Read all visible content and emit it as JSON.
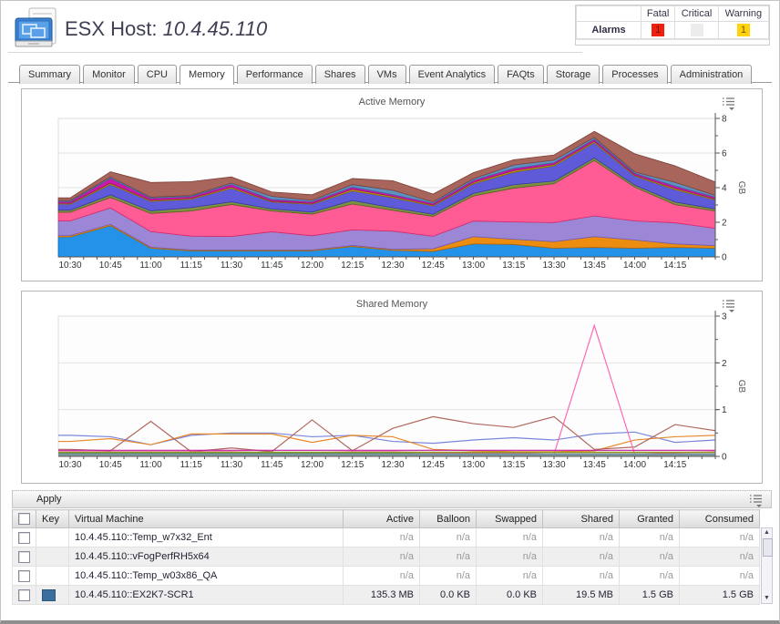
{
  "header": {
    "title_prefix": "ESX Host:",
    "host_ip": "10.4.45.110"
  },
  "alarms": {
    "row_label": "Alarms",
    "columns": [
      "Fatal",
      "Critical",
      "Warning"
    ],
    "fatal_count": "1",
    "critical_count": "",
    "warning_count": "1",
    "fatal_color": "#f02010",
    "critical_color": "#ececec",
    "warning_color": "#ffd20a"
  },
  "tabs": {
    "items": [
      {
        "label": "Summary",
        "active": false
      },
      {
        "label": "Monitor",
        "active": false
      },
      {
        "label": "CPU",
        "active": false
      },
      {
        "label": "Memory",
        "active": true
      },
      {
        "label": "Performance",
        "active": false
      },
      {
        "label": "Shares",
        "active": false
      },
      {
        "label": "VMs",
        "active": false
      },
      {
        "label": "Event Analytics",
        "active": false
      },
      {
        "label": "FAQts",
        "active": false
      },
      {
        "label": "Storage",
        "active": false
      },
      {
        "label": "Processes",
        "active": false
      },
      {
        "label": "Administration",
        "active": false
      }
    ]
  },
  "chart_data": [
    {
      "type": "area",
      "stacked": true,
      "title": "Active Memory",
      "ylabel": "GB",
      "ylim": [
        0,
        8
      ],
      "yticks": [
        0,
        2,
        4,
        6,
        8
      ],
      "y_minor_step": 1,
      "grid": true,
      "legend": "none",
      "x_labels": [
        "10:30",
        "10:45",
        "11:00",
        "11:15",
        "11:30",
        "11:45",
        "12:00",
        "12:15",
        "12:30",
        "12:45",
        "13:00",
        "13:15",
        "13:30",
        "13:45",
        "14:00",
        "14:15"
      ],
      "x_note_unit": "time of day, 15-min ticks",
      "series": [
        {
          "name": "layer-blue",
          "color": "#2492e8",
          "stroke": "#0d6dc0",
          "values": [
            1.15,
            1.8,
            0.5,
            0.35,
            0.35,
            0.35,
            0.35,
            0.6,
            0.38,
            0.32,
            0.75,
            0.72,
            0.5,
            0.55,
            0.5,
            0.55,
            0.5
          ]
        },
        {
          "name": "layer-orange",
          "color": "#ec8d12",
          "stroke": "#b56400",
          "values": [
            0.08,
            0.08,
            0.06,
            0.05,
            0.05,
            0.05,
            0.05,
            0.06,
            0.06,
            0.15,
            0.42,
            0.3,
            0.38,
            0.62,
            0.48,
            0.2,
            0.15
          ]
        },
        {
          "name": "layer-lavender",
          "color": "#9b87d6",
          "stroke": "#6f5ab8",
          "values": [
            0.85,
            0.95,
            0.9,
            0.8,
            0.78,
            1.05,
            0.82,
            0.9,
            1.05,
            0.72,
            0.9,
            1.0,
            1.1,
            1.2,
            1.1,
            1.22,
            1.0
          ]
        },
        {
          "name": "layer-pink",
          "color": "#ff5c96",
          "stroke": "#d82a68",
          "values": [
            0.5,
            0.6,
            1.05,
            1.45,
            1.85,
            1.2,
            1.25,
            1.5,
            1.2,
            1.15,
            1.45,
            1.95,
            2.25,
            3.2,
            1.95,
            1.05,
            1.0
          ]
        },
        {
          "name": "layer-olive",
          "color": "#7d9140",
          "stroke": "#55661f",
          "values": [
            0.12,
            0.15,
            0.15,
            0.2,
            0.15,
            0.12,
            0.12,
            0.2,
            0.15,
            0.12,
            0.15,
            0.2,
            0.15,
            0.15,
            0.12,
            0.15,
            0.12
          ]
        },
        {
          "name": "layer-indigo",
          "color": "#5f5bd8",
          "stroke": "#3c38ae",
          "values": [
            0.35,
            0.6,
            0.55,
            0.48,
            0.78,
            0.4,
            0.45,
            0.55,
            0.58,
            0.48,
            0.55,
            0.72,
            0.88,
            0.88,
            0.52,
            0.72,
            0.52
          ]
        },
        {
          "name": "layer-gold",
          "color": "#b89b12",
          "stroke": "#8a7300",
          "values": [
            0.05,
            0.08,
            0.06,
            0.06,
            0.08,
            0.05,
            0.05,
            0.1,
            0.08,
            0.06,
            0.08,
            0.1,
            0.08,
            0.08,
            0.06,
            0.08,
            0.06
          ]
        },
        {
          "name": "layer-magenta",
          "color": "#cc18aa",
          "stroke": "#990c7e",
          "values": [
            0.1,
            0.28,
            0.12,
            0.1,
            0.15,
            0.1,
            0.1,
            0.12,
            0.1,
            0.1,
            0.12,
            0.12,
            0.1,
            0.12,
            0.1,
            0.12,
            0.1
          ]
        },
        {
          "name": "layer-steelblue",
          "color": "#5e90c2",
          "stroke": "#3a6a99",
          "values": [
            0.06,
            0.08,
            0.06,
            0.06,
            0.08,
            0.18,
            0.08,
            0.15,
            0.25,
            0.08,
            0.1,
            0.2,
            0.15,
            0.1,
            0.08,
            0.22,
            0.1
          ]
        },
        {
          "name": "layer-brown",
          "color": "#a8655c",
          "stroke": "#7e4038",
          "values": [
            0.15,
            0.3,
            0.85,
            0.8,
            0.35,
            0.25,
            0.32,
            0.35,
            0.55,
            0.45,
            0.35,
            0.3,
            0.3,
            0.35,
            1.05,
            0.95,
            0.78
          ]
        }
      ]
    },
    {
      "type": "line",
      "stacked": false,
      "title": "Shared Memory",
      "ylabel": "GB",
      "ylim": [
        0,
        3
      ],
      "yticks": [
        0,
        1,
        2,
        3
      ],
      "y_minor_step": 0.5,
      "grid": true,
      "legend": "none",
      "x_labels": [
        "10:30",
        "10:45",
        "11:00",
        "11:15",
        "11:30",
        "11:45",
        "12:00",
        "12:15",
        "12:30",
        "12:45",
        "13:00",
        "13:15",
        "13:30",
        "13:45",
        "14:00",
        "14:15"
      ],
      "series": [
        {
          "name": "line-blue",
          "color": "#7a86dc",
          "values": [
            0.45,
            0.42,
            0.25,
            0.45,
            0.5,
            0.5,
            0.42,
            0.45,
            0.32,
            0.28,
            0.35,
            0.4,
            0.35,
            0.48,
            0.52,
            0.3,
            0.35
          ]
        },
        {
          "name": "line-orange",
          "color": "#e8892a",
          "values": [
            0.32,
            0.38,
            0.25,
            0.48,
            0.48,
            0.48,
            0.3,
            0.45,
            0.42,
            0.15,
            0.12,
            0.1,
            0.1,
            0.12,
            0.35,
            0.42,
            0.45
          ]
        },
        {
          "name": "line-brown",
          "color": "#b0685c",
          "values": [
            0.15,
            0.12,
            0.75,
            0.1,
            0.18,
            0.1,
            0.78,
            0.12,
            0.6,
            0.85,
            0.7,
            0.62,
            0.85,
            0.15,
            0.2,
            0.68,
            0.55
          ]
        },
        {
          "name": "line-pink",
          "color": "#ff69b4",
          "values": [
            0.1,
            0.1,
            0.1,
            0.1,
            0.1,
            0.08,
            0.08,
            0.1,
            0.1,
            0.08,
            0.08,
            0.08,
            0.05,
            2.8,
            0.05,
            0.08,
            0.1
          ]
        },
        {
          "name": "line-magenta",
          "color": "#c017a0",
          "values": [
            0.13,
            0.13,
            0.13,
            0.13,
            0.13,
            0.13,
            0.13,
            0.13,
            0.13,
            0.13,
            0.13,
            0.13,
            0.13,
            0.13,
            0.13,
            0.13,
            0.13
          ]
        },
        {
          "name": "line-olive",
          "color": "#a09020",
          "values": [
            0.09,
            0.09,
            0.09,
            0.09,
            0.09,
            0.09,
            0.09,
            0.09,
            0.09,
            0.09,
            0.09,
            0.09,
            0.09,
            0.09,
            0.09,
            0.09,
            0.09
          ]
        },
        {
          "name": "line-green",
          "color": "#5a9a4a",
          "values": [
            0.07,
            0.07,
            0.07,
            0.07,
            0.07,
            0.07,
            0.07,
            0.07,
            0.07,
            0.06,
            0.06,
            0.06,
            0.06,
            0.06,
            0.06,
            0.06,
            0.06
          ]
        },
        {
          "name": "line-slate",
          "color": "#8888aa",
          "values": [
            0.05,
            0.05,
            0.05,
            0.05,
            0.05,
            0.05,
            0.05,
            0.05,
            0.05,
            0.05,
            0.05,
            0.05,
            0.05,
            0.05,
            0.05,
            0.05,
            0.05
          ]
        },
        {
          "name": "line-teal",
          "color": "#30a0a0",
          "values": [
            0.03,
            0.03,
            0.03,
            0.03,
            0.03,
            0.03,
            0.03,
            0.03,
            0.03,
            0.03,
            0.03,
            0.03,
            0.03,
            0.03,
            0.03,
            0.03,
            0.03
          ]
        },
        {
          "name": "line-gray",
          "color": "#999999",
          "values": [
            0.02,
            0.02,
            0.02,
            0.02,
            0.02,
            0.02,
            0.02,
            0.02,
            0.02,
            0.02,
            0.02,
            0.02,
            0.02,
            0.02,
            0.02,
            0.02,
            0.02
          ]
        }
      ]
    }
  ],
  "table": {
    "apply_label": "Apply",
    "columns": [
      "",
      "Key",
      "Virtual Machine",
      "Active",
      "Balloon",
      "Swapped",
      "Shared",
      "Granted",
      "Consumed"
    ],
    "rows": [
      {
        "name": "10.4.45.110::Temp_w7x32_Ent",
        "active": "n/a",
        "balloon": "n/a",
        "swapped": "n/a",
        "shared": "n/a",
        "granted": "n/a",
        "consumed": "n/a"
      },
      {
        "name": "10.4.45.110::vFogPerfRH5x64",
        "active": "n/a",
        "balloon": "n/a",
        "swapped": "n/a",
        "shared": "n/a",
        "granted": "n/a",
        "consumed": "n/a"
      },
      {
        "name": "10.4.45.110::Temp_w03x86_QA",
        "active": "n/a",
        "balloon": "n/a",
        "swapped": "n/a",
        "shared": "n/a",
        "granted": "n/a",
        "consumed": "n/a"
      },
      {
        "name": "10.4.45.110::EX2K7-SCR1",
        "key_color": "#3a6e9e",
        "active": "135.3 MB",
        "balloon": "0.0 KB",
        "swapped": "0.0 KB",
        "shared": "19.5 MB",
        "granted": "1.5 GB",
        "consumed": "1.5 GB"
      }
    ]
  }
}
